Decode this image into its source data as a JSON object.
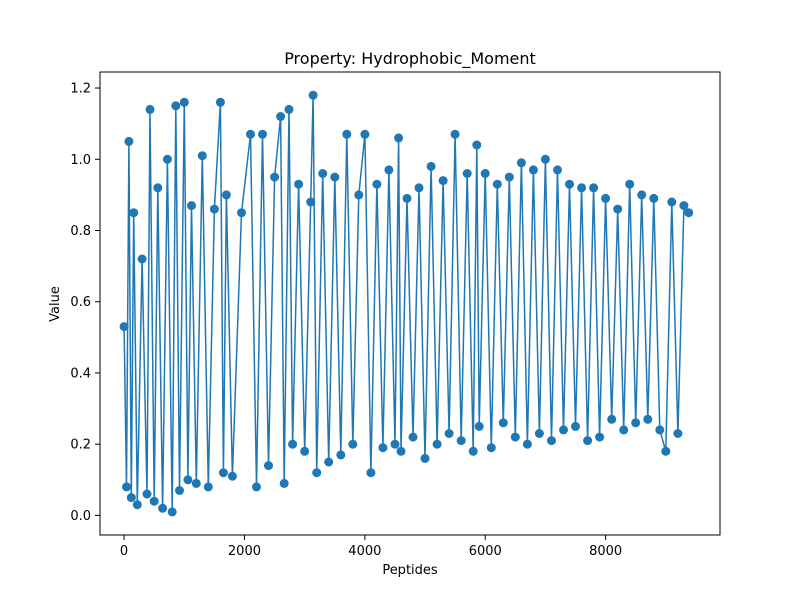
{
  "chart_data": {
    "type": "line",
    "title": "Property: Hydrophobic_Moment",
    "xlabel": "Peptides",
    "ylabel": "Value",
    "xlim": [
      -400,
      9900
    ],
    "ylim": [
      -0.055,
      1.245
    ],
    "xticks": [
      0,
      2000,
      4000,
      6000,
      8000
    ],
    "xtick_labels": [
      "0",
      "2000",
      "4000",
      "6000",
      "8000"
    ],
    "yticks": [
      0.0,
      0.2,
      0.4,
      0.6,
      0.8,
      1.0,
      1.2
    ],
    "ytick_labels": [
      "0.0",
      "0.2",
      "0.4",
      "0.6",
      "0.8",
      "1.0",
      "1.2"
    ],
    "grid": false,
    "series_color": "#1f77b4",
    "marker": "circle",
    "series": [
      {
        "x": [
          0,
          40,
          80,
          120,
          160,
          220,
          300,
          380,
          430,
          500,
          560,
          640,
          720,
          800,
          860,
          920,
          1000,
          1060,
          1120,
          1200,
          1300,
          1400,
          1500,
          1600,
          1650,
          1700,
          1800,
          1950,
          2100,
          2200,
          2300,
          2400,
          2500,
          2600,
          2660,
          2740,
          2800,
          2900,
          3000,
          3100,
          3140,
          3200,
          3300,
          3400,
          3500,
          3600,
          3700,
          3800,
          3900,
          4000,
          4100,
          4200,
          4300,
          4400,
          4500,
          4560,
          4600,
          4700,
          4800,
          4900,
          5000,
          5100,
          5200,
          5300,
          5400,
          5500,
          5600,
          5700,
          5800,
          5860,
          5900,
          6000,
          6100,
          6200,
          6300,
          6400,
          6500,
          6600,
          6700,
          6800,
          6900,
          7000,
          7100,
          7200,
          7300,
          7400,
          7500,
          7600,
          7700,
          7800,
          7900,
          8000,
          8100,
          8200,
          8300,
          8400,
          8500,
          8600,
          8700,
          8800,
          8900,
          9000,
          9100,
          9200,
          9300,
          9380
        ],
        "y": [
          0.53,
          0.08,
          1.05,
          0.05,
          0.85,
          0.03,
          0.72,
          0.06,
          1.14,
          0.04,
          0.92,
          0.02,
          1.0,
          0.01,
          1.15,
          0.07,
          1.16,
          0.1,
          0.87,
          0.09,
          1.01,
          0.08,
          0.86,
          1.16,
          0.12,
          0.9,
          0.11,
          0.85,
          1.07,
          0.08,
          1.07,
          0.14,
          0.95,
          1.12,
          0.09,
          1.14,
          0.2,
          0.93,
          0.18,
          0.88,
          1.18,
          0.12,
          0.96,
          0.15,
          0.95,
          0.17,
          1.07,
          0.2,
          0.9,
          1.07,
          0.12,
          0.93,
          0.19,
          0.97,
          0.2,
          1.06,
          0.18,
          0.89,
          0.22,
          0.92,
          0.16,
          0.98,
          0.2,
          0.94,
          0.23,
          1.07,
          0.21,
          0.96,
          0.18,
          1.04,
          0.25,
          0.96,
          0.19,
          0.93,
          0.26,
          0.95,
          0.22,
          0.99,
          0.2,
          0.97,
          0.23,
          1.0,
          0.21,
          0.97,
          0.24,
          0.93,
          0.25,
          0.92,
          0.21,
          0.92,
          0.22,
          0.89,
          0.27,
          0.86,
          0.24,
          0.93,
          0.26,
          0.9,
          0.27,
          0.89,
          0.24,
          0.18,
          0.88,
          0.23,
          0.87,
          0.85
        ]
      }
    ]
  }
}
